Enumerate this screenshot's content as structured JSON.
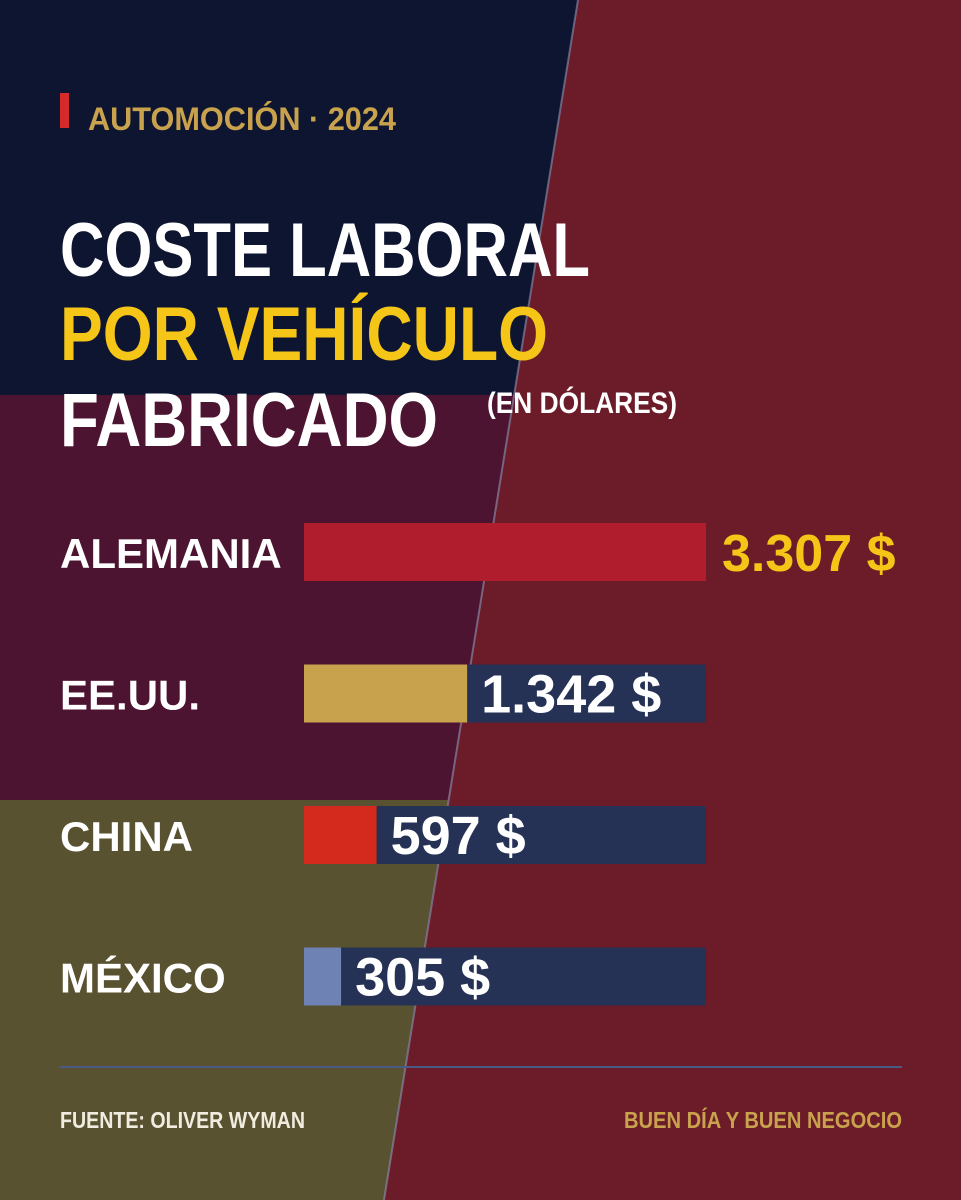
{
  "chart_data": {
    "type": "bar",
    "kicker": "AUTOMOCIÓN · 2024",
    "title": [
      "COSTE LABORAL",
      "POR VEHÍCULO",
      "FABRICADO"
    ],
    "subtitle": "(EN DÓLARES)",
    "categories": [
      "ALEMANIA",
      "EE.UU.",
      "CHINA",
      "MÉXICO"
    ],
    "values": [
      3307,
      1342,
      597,
      305
    ],
    "value_labels": [
      "3.307 $",
      "1.342 $",
      "597 $",
      "305 $"
    ],
    "colors": [
      "#b01e2e",
      "#c9a24e",
      "#d42a1e",
      "#6f82b4"
    ],
    "xlim": [
      0,
      3307
    ],
    "source": "FUENTE: OLIVER WYMAN",
    "credit": "BUEN DÍA Y BUEN NEGOCIO"
  }
}
